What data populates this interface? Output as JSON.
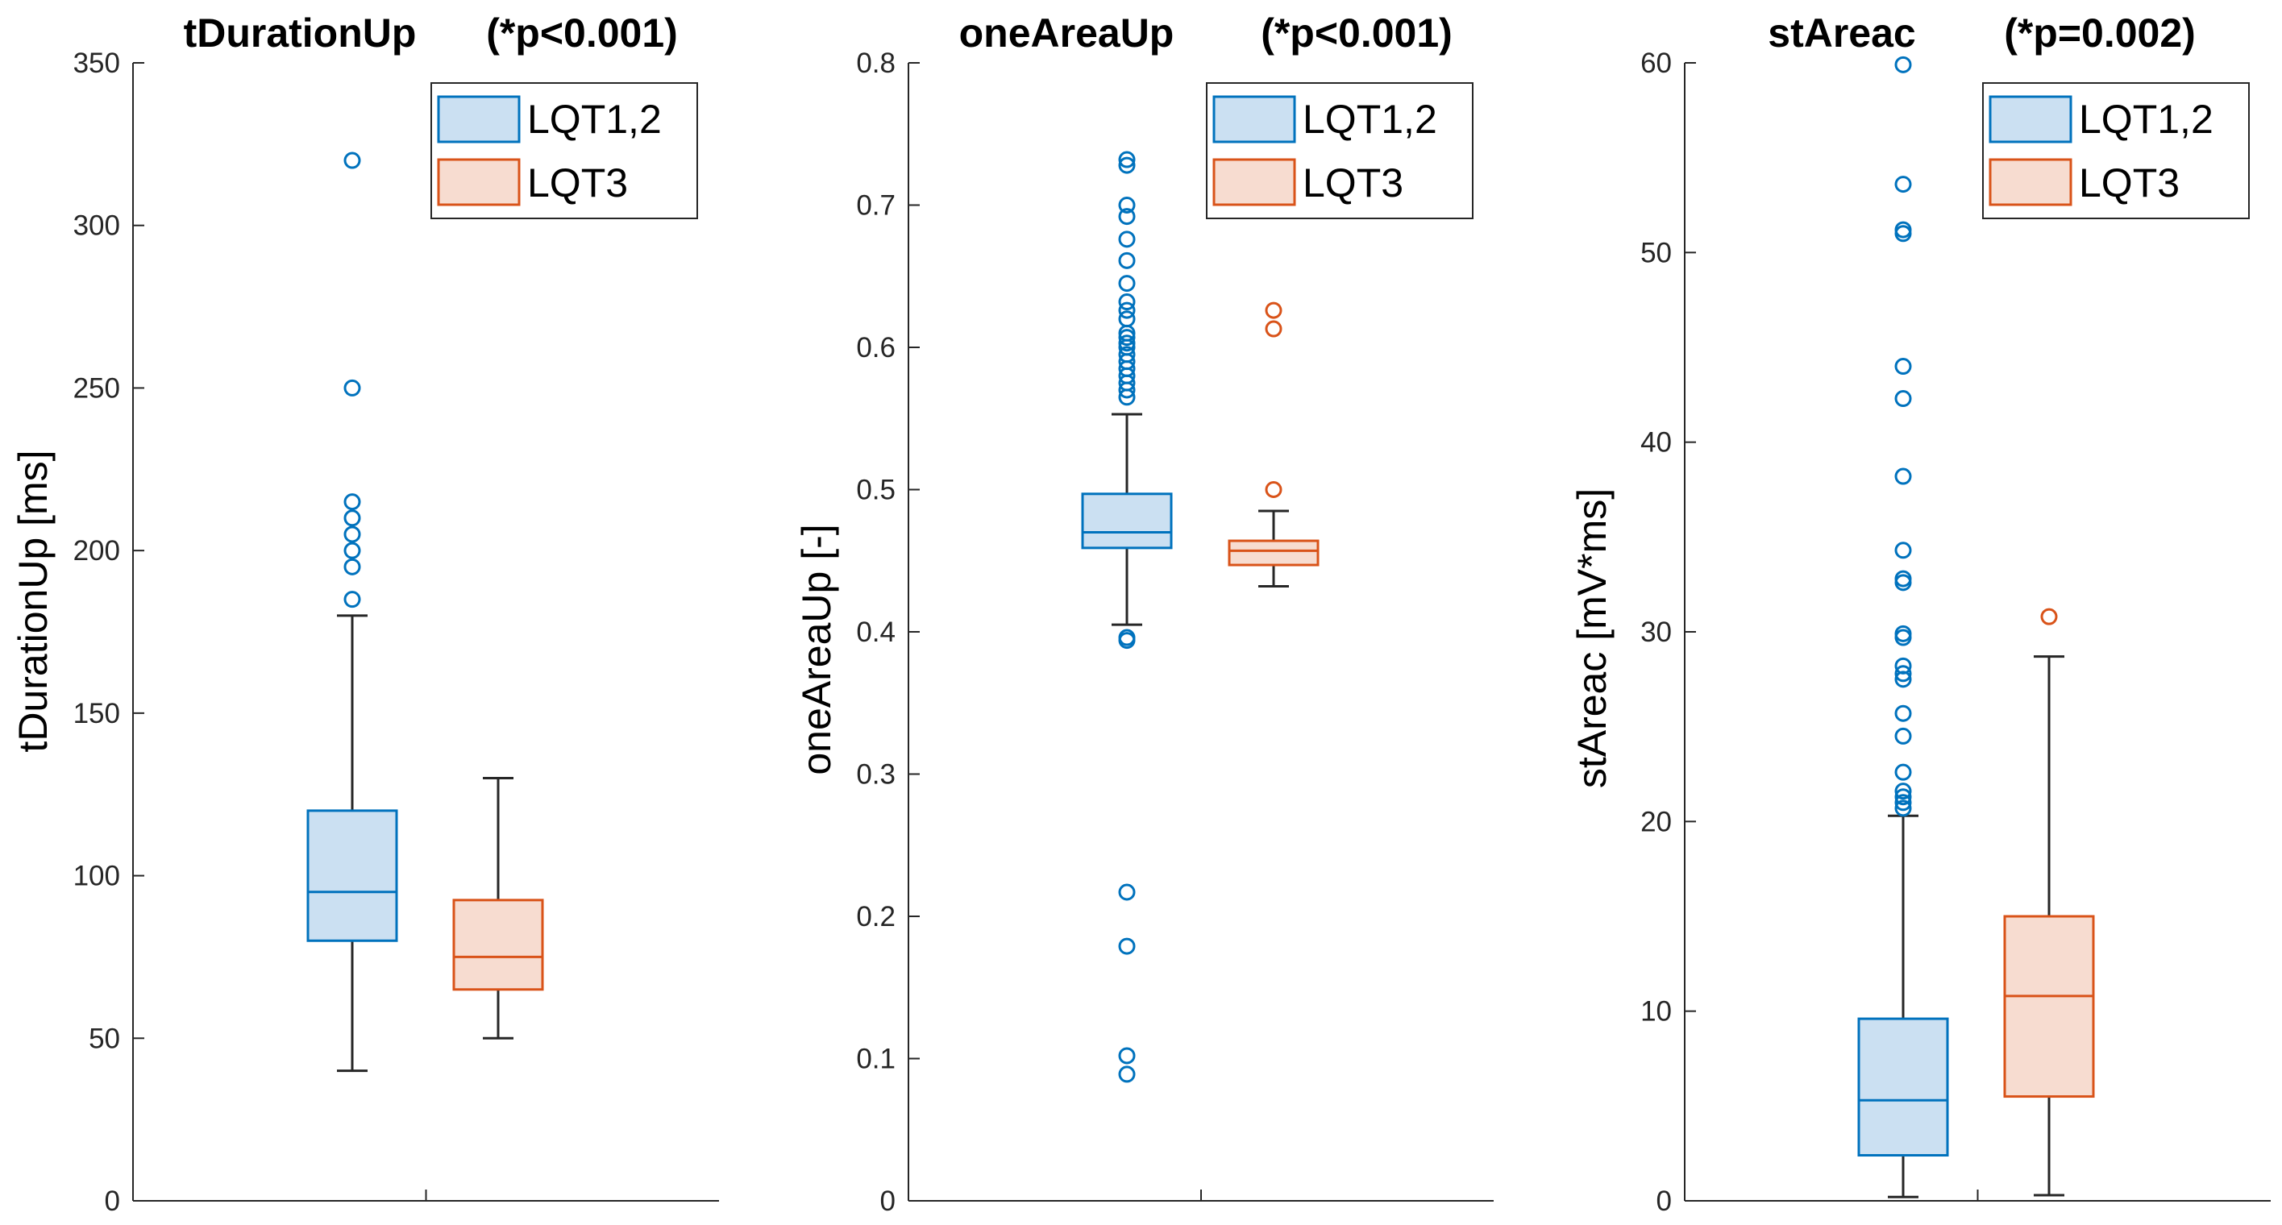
{
  "figure": {
    "background": "#ffffff"
  },
  "groups": [
    {
      "name": "LQT1,2",
      "stroke": "#0072BD",
      "fill": "#CBE0F2"
    },
    {
      "name": "LQT3",
      "stroke": "#D95319",
      "fill": "#F7DCD0"
    }
  ],
  "chart_data": [
    {
      "type": "box",
      "title": "tDurationUp",
      "pvalue": "(*p<0.001)",
      "ylabel": "tDurationUp  [ms]",
      "ylim": [
        0,
        350
      ],
      "yticks": [
        0,
        50,
        100,
        150,
        200,
        250,
        300,
        350
      ],
      "ytick_labels": [
        "0",
        "50",
        "100",
        "150",
        "200",
        "250",
        "300",
        "350"
      ],
      "legend_position": "top-right",
      "series": [
        {
          "name": "LQT1,2",
          "whisker_low": 40,
          "q1": 80,
          "median": 95,
          "q3": 120,
          "whisker_high": 180,
          "outliers": [
            185,
            195,
            200,
            205,
            210,
            215,
            250,
            320
          ]
        },
        {
          "name": "LQT3",
          "whisker_low": 50,
          "q1": 65,
          "median": 75,
          "q3": 92.5,
          "whisker_high": 130,
          "outliers": []
        }
      ]
    },
    {
      "type": "box",
      "title": "oneAreaUp",
      "pvalue": "(*p<0.001)",
      "ylabel": "oneAreaUp  [-]",
      "ylim": [
        0,
        0.8
      ],
      "yticks": [
        0,
        0.1,
        0.2,
        0.3,
        0.4,
        0.5,
        0.6,
        0.7,
        0.8
      ],
      "ytick_labels": [
        "0",
        "0.1",
        "0.2",
        "0.3",
        "0.4",
        "0.5",
        "0.6",
        "0.7",
        "0.8"
      ],
      "legend_position": "top-right",
      "series": [
        {
          "name": "LQT1,2",
          "whisker_low": 0.405,
          "q1": 0.459,
          "median": 0.47,
          "q3": 0.497,
          "whisker_high": 0.553,
          "outliers": [
            0.089,
            0.102,
            0.179,
            0.217,
            0.394,
            0.396,
            0.565,
            0.57,
            0.575,
            0.58,
            0.585,
            0.59,
            0.595,
            0.6,
            0.603,
            0.607,
            0.61,
            0.62,
            0.626,
            0.632,
            0.645,
            0.661,
            0.676,
            0.692,
            0.7,
            0.728,
            0.732
          ]
        },
        {
          "name": "LQT3",
          "whisker_low": 0.432,
          "q1": 0.447,
          "median": 0.457,
          "q3": 0.464,
          "whisker_high": 0.485,
          "outliers": [
            0.5,
            0.613,
            0.626
          ]
        }
      ]
    },
    {
      "type": "box",
      "title": "stAreac",
      "pvalue": "(*p=0.002)",
      "ylabel": "stAreac  [mV*ms]",
      "ylim": [
        0,
        60
      ],
      "yticks": [
        0,
        10,
        20,
        30,
        40,
        50,
        60
      ],
      "ytick_labels": [
        "0",
        "10",
        "20",
        "30",
        "40",
        "50",
        "60"
      ],
      "legend_position": "top-right",
      "series": [
        {
          "name": "LQT1,2",
          "whisker_low": 0.2,
          "q1": 2.4,
          "median": 5.3,
          "q3": 9.6,
          "whisker_high": 20.3,
          "outliers": [
            20.7,
            21.0,
            21.3,
            21.6,
            22.6,
            24.5,
            25.7,
            27.5,
            27.8,
            28.2,
            29.7,
            29.9,
            32.6,
            32.8,
            34.3,
            38.2,
            42.3,
            44.0,
            51.0,
            51.2,
            53.6,
            59.9
          ]
        },
        {
          "name": "LQT3",
          "whisker_low": 0.3,
          "q1": 5.5,
          "median": 10.8,
          "q3": 15.0,
          "whisker_high": 28.7,
          "outliers": [
            30.8
          ]
        }
      ]
    }
  ]
}
